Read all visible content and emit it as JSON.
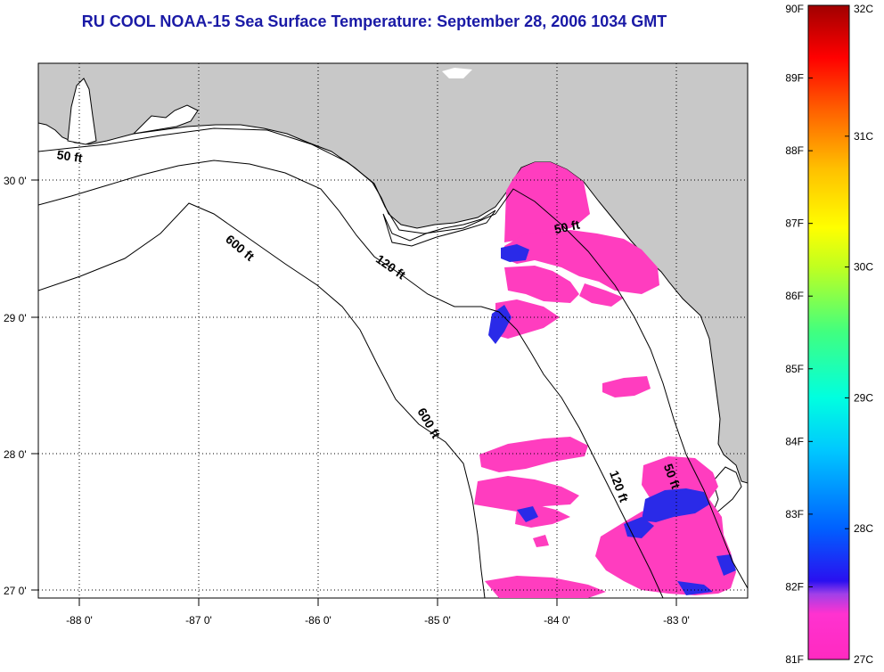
{
  "title": "RU COOL  NOAA-15  Sea Surface Temperature:  September 28, 2006 1034 GMT",
  "map": {
    "lon_range": [
      -88.35,
      -82.45
    ],
    "lat_range": [
      26.93,
      30.85
    ],
    "lat_ticks": [
      "30 0'",
      "29 0'",
      "28 0'",
      "27 0'"
    ],
    "lon_ticks": [
      "-88 0'",
      "-87 0'",
      "-86 0'",
      "-85 0'",
      "-84 0'",
      "-83 0'"
    ],
    "grid": "dotted",
    "colors": {
      "land": "#c8c8c8",
      "water": "#ffffff",
      "warm_patch": "#ff3dbf",
      "cool_patch": "#2a2ae8"
    }
  },
  "contours": {
    "labels": [
      {
        "text": "50 ft",
        "lon": -88.2,
        "lat": 30.15,
        "angle": 8
      },
      {
        "text": "600 ft",
        "lon": -86.8,
        "lat": 29.55,
        "angle": 40
      },
      {
        "text": "120 ft",
        "lon": -85.55,
        "lat": 29.4,
        "angle": 35
      },
      {
        "text": "50 ft",
        "lon": -84.05,
        "lat": 29.6,
        "angle": -12
      },
      {
        "text": "600 ft",
        "lon": -85.2,
        "lat": 28.3,
        "angle": 60
      },
      {
        "text": "120 ft",
        "lon": -83.6,
        "lat": 27.85,
        "angle": 70
      },
      {
        "text": "50 ft",
        "lon": -83.15,
        "lat": 27.9,
        "angle": 70
      }
    ]
  },
  "colorbar": {
    "f_labels": [
      "90F",
      "89F",
      "88F",
      "87F",
      "86F",
      "85F",
      "84F",
      "83F",
      "82F",
      "81F"
    ],
    "c_labels": [
      "32C",
      "31C",
      "30C",
      "29C",
      "28C",
      "27C"
    ],
    "f_range": [
      81,
      90
    ],
    "c_range": [
      27,
      32
    ],
    "colors": [
      "#ff2ac0",
      "#ff32d0",
      "#a040e8",
      "#2a10f0",
      "#0060ff",
      "#00c8ff",
      "#00ffe0",
      "#80ff40",
      "#ffff00",
      "#ffc000",
      "#ff6000",
      "#ff0000",
      "#a00000"
    ]
  }
}
